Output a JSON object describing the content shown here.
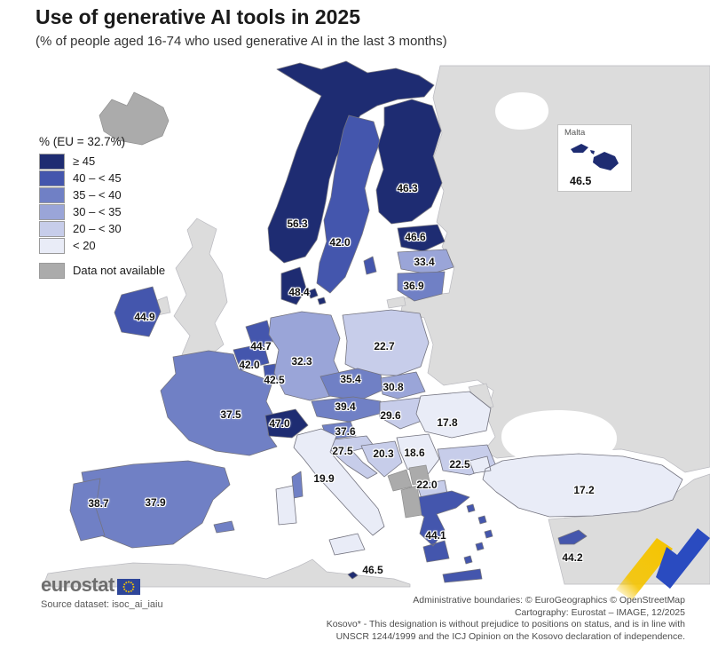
{
  "title": "Use of generative AI tools in 2025",
  "subtitle": "(% of people aged 16-74 who used generative AI in the last 3 months)",
  "legend": {
    "title": "% (EU = 32.7%)",
    "classes": [
      {
        "label": "≥ 45",
        "color": "#1e2c72",
        "min": 45
      },
      {
        "label": "40 – < 45",
        "color": "#4456ad",
        "min": 40
      },
      {
        "label": "35 – < 40",
        "color": "#7080c5",
        "min": 35
      },
      {
        "label": "30 – < 35",
        "color": "#9aa5d8",
        "min": 30
      },
      {
        "label": "20 – < 30",
        "color": "#c7cdea",
        "min": 20
      },
      {
        "label": "< 20",
        "color": "#e9ecf7",
        "min": 0
      }
    ],
    "no_data": {
      "label": "Data not available",
      "color": "#ababab"
    }
  },
  "chart_data": {
    "type": "choropleth",
    "unit": "% of people aged 16-74",
    "eu_average": 32.7,
    "countries": [
      {
        "id": "no",
        "name": "Norway",
        "value": "56.3"
      },
      {
        "id": "se",
        "name": "Sweden",
        "value": "42.0"
      },
      {
        "id": "fi",
        "name": "Finland",
        "value": "46.3"
      },
      {
        "id": "ee",
        "name": "Estonia",
        "value": "46.6"
      },
      {
        "id": "lv",
        "name": "Latvia",
        "value": "33.4"
      },
      {
        "id": "lt",
        "name": "Lithuania",
        "value": "36.9"
      },
      {
        "id": "dk",
        "name": "Denmark",
        "value": "48.4"
      },
      {
        "id": "ie",
        "name": "Ireland",
        "value": "44.9"
      },
      {
        "id": "nl",
        "name": "Netherlands",
        "value": "44.7"
      },
      {
        "id": "be",
        "name": "Belgium",
        "value": "42.0"
      },
      {
        "id": "lu",
        "name": "Luxembourg",
        "value": "42.5"
      },
      {
        "id": "de",
        "name": "Germany",
        "value": "32.3"
      },
      {
        "id": "pl",
        "name": "Poland",
        "value": "22.7"
      },
      {
        "id": "cz",
        "name": "Czechia",
        "value": "35.4"
      },
      {
        "id": "sk",
        "name": "Slovakia",
        "value": "30.8"
      },
      {
        "id": "at",
        "name": "Austria",
        "value": "39.4"
      },
      {
        "id": "hu",
        "name": "Hungary",
        "value": "29.6"
      },
      {
        "id": "ro",
        "name": "Romania",
        "value": "17.8"
      },
      {
        "id": "fr",
        "name": "France",
        "value": "37.5"
      },
      {
        "id": "ch",
        "name": "Switzerland",
        "value": "47.0"
      },
      {
        "id": "si",
        "name": "Slovenia",
        "value": "37.6"
      },
      {
        "id": "hr",
        "name": "Croatia",
        "value": "27.5"
      },
      {
        "id": "ba",
        "name": "Bosnia and Herzegovina",
        "value": "20.3"
      },
      {
        "id": "rs",
        "name": "Serbia",
        "value": "18.6"
      },
      {
        "id": "mk",
        "name": "North Macedonia",
        "value": "22.0"
      },
      {
        "id": "bg",
        "name": "Bulgaria",
        "value": "22.5"
      },
      {
        "id": "el",
        "name": "Greece",
        "value": "44.1"
      },
      {
        "id": "it",
        "name": "Italy",
        "value": "19.9"
      },
      {
        "id": "es",
        "name": "Spain",
        "value": "37.9"
      },
      {
        "id": "pt",
        "name": "Portugal",
        "value": "38.7"
      },
      {
        "id": "tr",
        "name": "Turkey",
        "value": "17.2"
      },
      {
        "id": "cy",
        "name": "Cyprus",
        "value": "44.2"
      },
      {
        "id": "mt",
        "name": "Malta",
        "value": "46.5"
      }
    ],
    "no_data_countries": [
      {
        "id": "is",
        "name": "Iceland"
      },
      {
        "id": "me",
        "name": "Montenegro"
      },
      {
        "id": "xk",
        "name": "Kosovo"
      },
      {
        "id": "al",
        "name": "Albania"
      }
    ]
  },
  "malta_inset": {
    "title": "Malta",
    "value": "46.5"
  },
  "footer": {
    "logo_text": "eurostat",
    "source": "Source dataset: isoc_ai_iaiu",
    "attribution_lines": [
      "Administrative boundaries: © EuroGeographics © OpenStreetMap",
      "Cartography: Eurostat – IMAGE, 12/2025",
      "Kosovo* - This designation is without prejudice to positions on status, and is in line with",
      "UNSCR 1244/1999 and the ICJ Opinion on the Kosovo declaration of independence."
    ]
  },
  "colors": {
    "sea": "#ffffff",
    "other_land": "#dcdcdc",
    "border": "#73737f",
    "ribbon_yellow": "#f5c400",
    "ribbon_blue": "#2a4bc0"
  }
}
